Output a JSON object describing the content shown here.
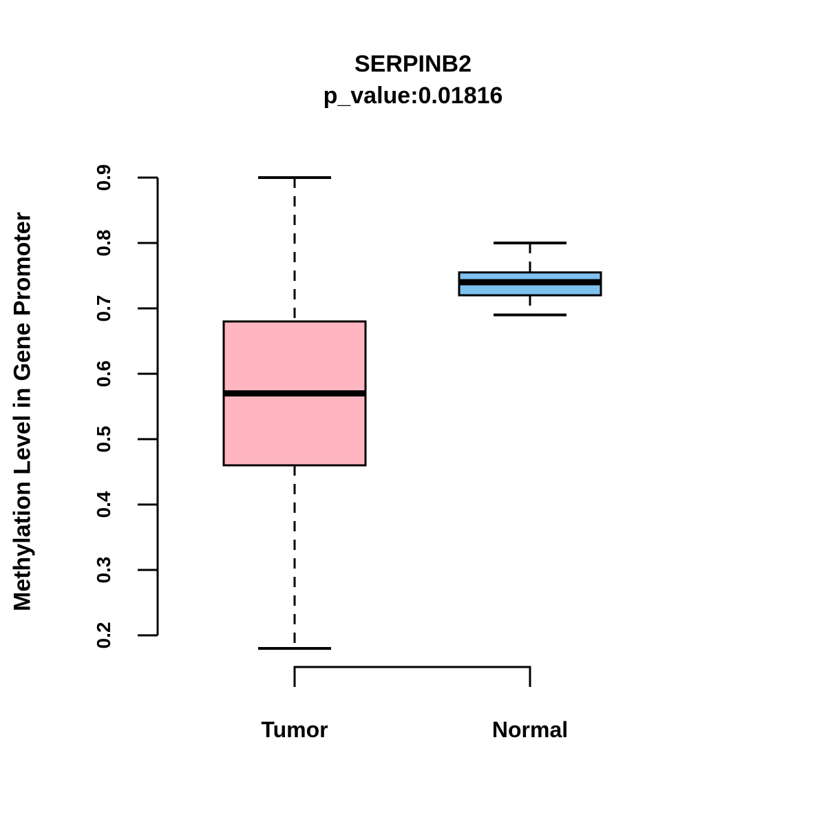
{
  "chart_data": {
    "type": "boxplot",
    "title": "SERPINB2",
    "subtitle": "p_value:0.01816",
    "ylabel": "Methylation Level in Gene Promoter",
    "ylim": [
      0.2,
      0.9
    ],
    "yticks": [
      0.2,
      0.3,
      0.4,
      0.5,
      0.6,
      0.7,
      0.8,
      0.9
    ],
    "categories": [
      "Tumor",
      "Normal"
    ],
    "grid": "off",
    "legend": "none",
    "series": [
      {
        "name": "Tumor",
        "color": "#FFB6C1",
        "whisker_low": 0.18,
        "q1": 0.46,
        "median": 0.57,
        "q3": 0.68,
        "whisker_high": 0.9
      },
      {
        "name": "Normal",
        "color": "#7EC0EE",
        "whisker_low": 0.69,
        "q1": 0.72,
        "median": 0.74,
        "q3": 0.755,
        "whisker_high": 0.8
      }
    ],
    "stroke_color": "#000000",
    "background_color": "#FFFFFF"
  }
}
